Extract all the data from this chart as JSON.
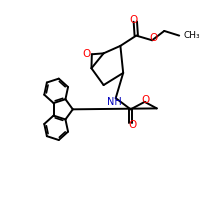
{
  "background": "#ffffff",
  "bond_color": "#000000",
  "oxygen_color": "#ff0000",
  "nitrogen_color": "#0000bb",
  "line_width": 1.4,
  "fig_size": [
    2.0,
    2.0
  ],
  "dpi": 100,
  "xlim": [
    0,
    1
  ],
  "ylim": [
    0,
    1
  ]
}
